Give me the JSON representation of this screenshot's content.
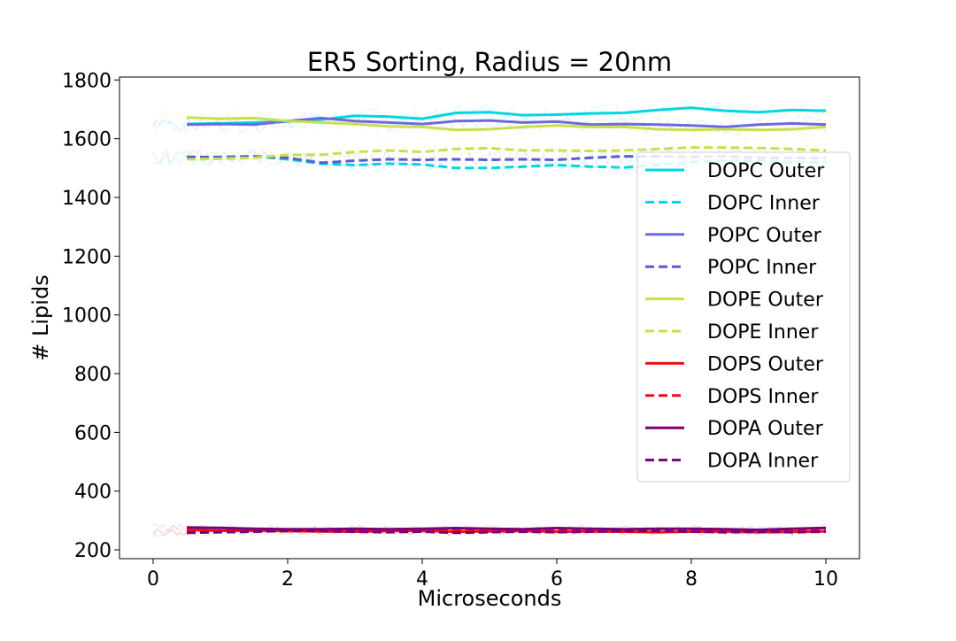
{
  "chart_data": {
    "type": "line",
    "title": "ER5 Sorting, Radius = 20nm",
    "xlabel": "Microseconds",
    "ylabel": "# Lipids",
    "xlim": [
      -0.5,
      10.5
    ],
    "ylim": [
      170,
      1810
    ],
    "xticks": [
      0,
      2,
      4,
      6,
      8,
      10
    ],
    "yticks": [
      200,
      400,
      600,
      800,
      1000,
      1200,
      1400,
      1600,
      1800
    ],
    "grid": false,
    "legend_position": "right",
    "series": [
      {
        "name": "DOPC Outer",
        "color": "#00d7e0",
        "dash": "solid",
        "x": [
          0.5,
          1,
          1.5,
          2,
          2.5,
          3,
          3.5,
          4,
          4.5,
          5,
          5.5,
          6,
          6.5,
          7,
          7.5,
          8,
          8.5,
          9,
          9.5,
          10
        ],
        "y": [
          1650,
          1652,
          1655,
          1658,
          1665,
          1678,
          1675,
          1668,
          1688,
          1690,
          1680,
          1682,
          1686,
          1688,
          1698,
          1705,
          1695,
          1690,
          1698,
          1695
        ]
      },
      {
        "name": "DOPC Inner",
        "color": "#00d7e0",
        "dash": "dashed",
        "x": [
          0.5,
          1,
          1.5,
          2,
          2.5,
          3,
          3.5,
          4,
          4.5,
          5,
          5.5,
          6,
          6.5,
          7,
          7.5,
          8,
          8.5,
          9,
          9.5,
          10
        ],
        "y": [
          1535,
          1538,
          1540,
          1530,
          1515,
          1510,
          1515,
          1512,
          1500,
          1500,
          1505,
          1510,
          1505,
          1502,
          1510,
          1520,
          1525,
          1525,
          1520,
          1520
        ]
      },
      {
        "name": "POPC Outer",
        "color": "#6b6bdf",
        "dash": "solid",
        "x": [
          0.5,
          1,
          1.5,
          2,
          2.5,
          3,
          3.5,
          4,
          4.5,
          5,
          5.5,
          6,
          6.5,
          7,
          7.5,
          8,
          8.5,
          9,
          9.5,
          10
        ],
        "y": [
          1648,
          1650,
          1648,
          1660,
          1670,
          1660,
          1655,
          1650,
          1660,
          1662,
          1655,
          1658,
          1648,
          1650,
          1648,
          1645,
          1640,
          1648,
          1652,
          1648
        ]
      },
      {
        "name": "POPC Inner",
        "color": "#5a5ad6",
        "dash": "dashed",
        "x": [
          0.5,
          1,
          1.5,
          2,
          2.5,
          3,
          3.5,
          4,
          4.5,
          5,
          5.5,
          6,
          6.5,
          7,
          7.5,
          8,
          8.5,
          9,
          9.5,
          10
        ],
        "y": [
          1538,
          1537,
          1540,
          1535,
          1518,
          1525,
          1530,
          1528,
          1530,
          1528,
          1530,
          1528,
          1535,
          1540,
          1540,
          1538,
          1540,
          1535,
          1535,
          1535
        ]
      },
      {
        "name": "DOPE Outer",
        "color": "#c8e04a",
        "dash": "solid",
        "x": [
          0.5,
          1,
          1.5,
          2,
          2.5,
          3,
          3.5,
          4,
          4.5,
          5,
          5.5,
          6,
          6.5,
          7,
          7.5,
          8,
          8.5,
          9,
          9.5,
          10
        ],
        "y": [
          1672,
          1668,
          1670,
          1660,
          1655,
          1650,
          1642,
          1640,
          1630,
          1632,
          1640,
          1645,
          1640,
          1640,
          1632,
          1630,
          1632,
          1630,
          1632,
          1640
        ]
      },
      {
        "name": "DOPE Inner",
        "color": "#c8e04a",
        "dash": "dashed",
        "x": [
          0.5,
          1,
          1.5,
          2,
          2.5,
          3,
          3.5,
          4,
          4.5,
          5,
          5.5,
          6,
          6.5,
          7,
          7.5,
          8,
          8.5,
          9,
          9.5,
          10
        ],
        "y": [
          1530,
          1532,
          1535,
          1545,
          1545,
          1555,
          1560,
          1555,
          1565,
          1568,
          1560,
          1560,
          1558,
          1560,
          1565,
          1570,
          1570,
          1568,
          1565,
          1560
        ]
      },
      {
        "name": "DOPS Outer",
        "color": "#ee1111",
        "dash": "solid",
        "x": [
          0.5,
          1,
          1.5,
          2,
          2.5,
          3,
          3.5,
          4,
          4.5,
          5,
          5.5,
          6,
          6.5,
          7,
          7.5,
          8,
          8.5,
          9,
          9.5,
          10
        ],
        "y": [
          268,
          265,
          266,
          264,
          263,
          262,
          264,
          265,
          262,
          263,
          264,
          262,
          263,
          262,
          260,
          262,
          263,
          260,
          262,
          263
        ]
      },
      {
        "name": "DOPS Inner",
        "color": "#ee1111",
        "dash": "dashed",
        "x": [
          0.5,
          1,
          1.5,
          2,
          2.5,
          3,
          3.5,
          4,
          4.5,
          5,
          5.5,
          6,
          6.5,
          7,
          7.5,
          8,
          8.5,
          9,
          9.5,
          10
        ],
        "y": [
          260,
          262,
          263,
          264,
          265,
          264,
          266,
          265,
          267,
          266,
          265,
          266,
          265,
          266,
          265,
          266,
          265,
          265,
          264,
          265
        ]
      },
      {
        "name": "DOPA Outer",
        "color": "#7a007a",
        "dash": "solid",
        "x": [
          0.5,
          1,
          1.5,
          2,
          2.5,
          3,
          3.5,
          4,
          4.5,
          5,
          5.5,
          6,
          6.5,
          7,
          7.5,
          8,
          8.5,
          9,
          9.5,
          10
        ],
        "y": [
          276,
          275,
          272,
          270,
          270,
          272,
          270,
          272,
          274,
          272,
          270,
          274,
          272,
          270,
          272,
          272,
          270,
          268,
          272,
          275
        ]
      },
      {
        "name": "DOPA Inner",
        "color": "#7a007a",
        "dash": "dashed",
        "x": [
          0.5,
          1,
          1.5,
          2,
          2.5,
          3,
          3.5,
          4,
          4.5,
          5,
          5.5,
          6,
          6.5,
          7,
          7.5,
          8,
          8.5,
          9,
          9.5,
          10
        ],
        "y": [
          258,
          260,
          262,
          265,
          264,
          262,
          260,
          262,
          258,
          260,
          262,
          260,
          262,
          264,
          265,
          262,
          260,
          262,
          260,
          262
        ]
      }
    ]
  }
}
